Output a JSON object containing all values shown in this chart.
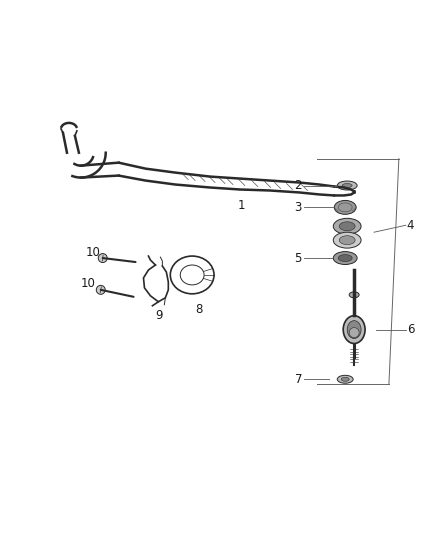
{
  "bg_color": "#ffffff",
  "line_color": "#2a2a2a",
  "label_color": "#1a1a1a",
  "fig_width": 4.38,
  "fig_height": 5.33,
  "dpi": 100,
  "bar_color": "#555555",
  "detail_color": "#777777",
  "gray_light": "#aaaaaa",
  "gray_mid": "#888888",
  "gray_dark": "#555555"
}
